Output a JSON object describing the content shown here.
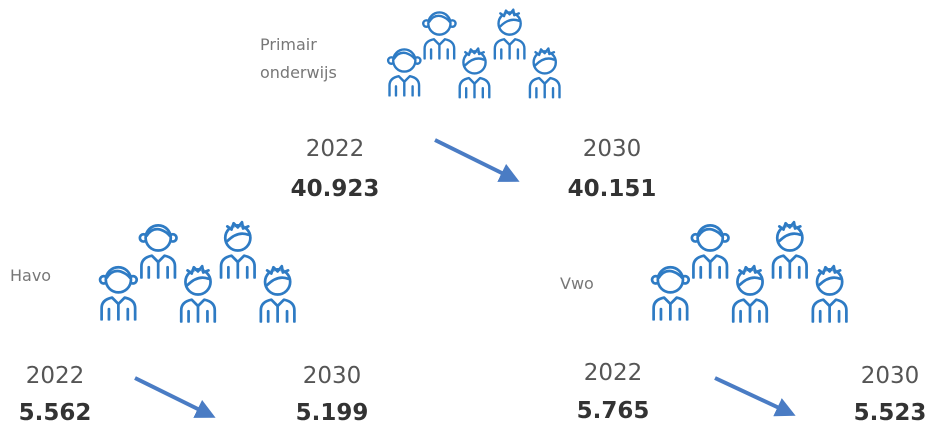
{
  "sections": [
    {
      "label_lines": [
        "Primair",
        "onderwijs"
      ],
      "from": {
        "year": "2022",
        "value": "40.923"
      },
      "to": {
        "year": "2030",
        "value": "40.151"
      }
    },
    {
      "label_lines": [
        "Havo"
      ],
      "from": {
        "year": "2022",
        "value": "5.562"
      },
      "to": {
        "year": "2030",
        "value": "5.199"
      }
    },
    {
      "label_lines": [
        "Vwo"
      ],
      "from": {
        "year": "2022",
        "value": "5.765"
      },
      "to": {
        "year": "2030",
        "value": "5.523"
      }
    }
  ]
}
